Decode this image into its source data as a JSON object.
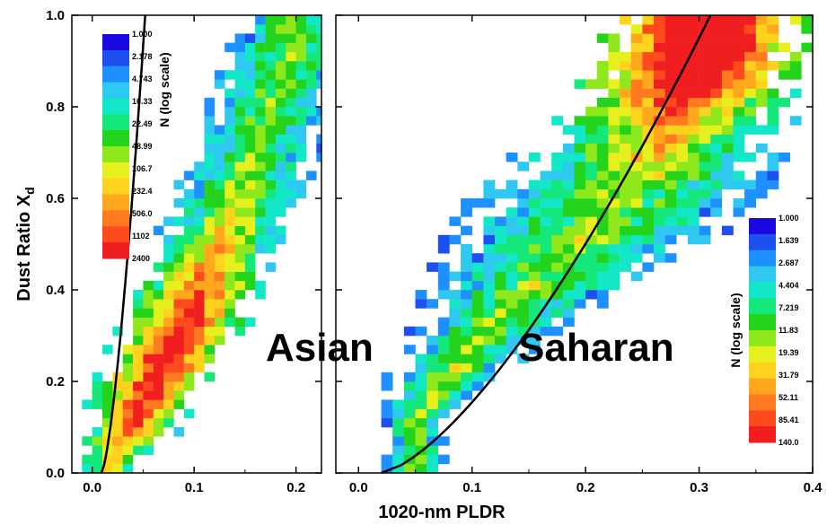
{
  "chart_data": [
    {
      "type": "heatmap",
      "panel": "left",
      "label": "Asian",
      "xlabel": "1020-nm PLDR",
      "ylabel": "Dust Ratio X",
      "ylabel_sub": "d",
      "xlim": [
        -0.02,
        0.225
      ],
      "ylim": [
        0.0,
        1.0
      ],
      "xticks": [
        0.0,
        0.1,
        0.2
      ],
      "xtick_labels": [
        "0.0",
        "0.1",
        "0.2"
      ],
      "yticks": [
        0.0,
        0.2,
        0.4,
        0.6,
        0.8,
        1.0
      ],
      "ytick_labels": [
        "0.0",
        "0.2",
        "0.4",
        "0.6",
        "0.8",
        "1.0"
      ],
      "colorbar": {
        "title": "N (log scale)",
        "labels": [
          "1.000",
          "2.178",
          "4.743",
          "10.33",
          "22.49",
          "48.99",
          "106.7",
          "232.4",
          "506.0",
          "1102",
          "2400"
        ]
      },
      "curve": {
        "x0": 0.009,
        "x1": 0.052,
        "power": 1.45
      },
      "ridge": [
        {
          "y": 0.02,
          "x": 0.015,
          "w": 0.02
        },
        {
          "y": 0.1,
          "x": 0.04,
          "w": 0.04
        },
        {
          "y": 0.2,
          "x": 0.06,
          "w": 0.045
        },
        {
          "y": 0.3,
          "x": 0.085,
          "w": 0.05
        },
        {
          "y": 0.4,
          "x": 0.105,
          "w": 0.05
        },
        {
          "y": 0.5,
          "x": 0.125,
          "w": 0.05
        },
        {
          "y": 0.6,
          "x": 0.145,
          "w": 0.05
        },
        {
          "y": 0.7,
          "x": 0.16,
          "w": 0.05
        },
        {
          "y": 0.8,
          "x": 0.175,
          "w": 0.05
        },
        {
          "y": 0.9,
          "x": 0.19,
          "w": 0.05
        },
        {
          "y": 1.0,
          "x": 0.2,
          "w": 0.04
        }
      ],
      "peak": {
        "y": 0.25,
        "amp": 0.55,
        "sy": 0.25
      }
    },
    {
      "type": "heatmap",
      "panel": "right",
      "label": "Saharan",
      "xlabel": "1020-nm PLDR",
      "xlim": [
        -0.02,
        0.4
      ],
      "ylim": [
        0.0,
        1.0
      ],
      "xticks": [
        0.0,
        0.1,
        0.2,
        0.3,
        0.4
      ],
      "xtick_labels": [
        "0.0",
        "0.1",
        "0.2",
        "0.3",
        "0.4"
      ],
      "colorbar": {
        "title": "N (log scale)",
        "labels": [
          "1.000",
          "1.639",
          "2.687",
          "4.404",
          "7.219",
          "11.83",
          "19.39",
          "31.79",
          "52.11",
          "85.41",
          "140.0"
        ]
      },
      "curve": {
        "x0": 0.02,
        "x1": 0.31,
        "power": 1.45
      },
      "ridge": [
        {
          "y": 0.1,
          "x": 0.05,
          "w": 0.02
        },
        {
          "y": 0.2,
          "x": 0.075,
          "w": 0.04
        },
        {
          "y": 0.3,
          "x": 0.11,
          "w": 0.05
        },
        {
          "y": 0.4,
          "x": 0.15,
          "w": 0.07
        },
        {
          "y": 0.5,
          "x": 0.19,
          "w": 0.09
        },
        {
          "y": 0.6,
          "x": 0.23,
          "w": 0.1
        },
        {
          "y": 0.7,
          "x": 0.26,
          "w": 0.09
        },
        {
          "y": 0.8,
          "x": 0.28,
          "w": 0.08
        },
        {
          "y": 0.9,
          "x": 0.3,
          "w": 0.07
        },
        {
          "y": 1.0,
          "x": 0.31,
          "w": 0.07
        }
      ],
      "peak": {
        "y": 0.95,
        "amp": 0.85,
        "sy": 0.2
      }
    }
  ]
}
